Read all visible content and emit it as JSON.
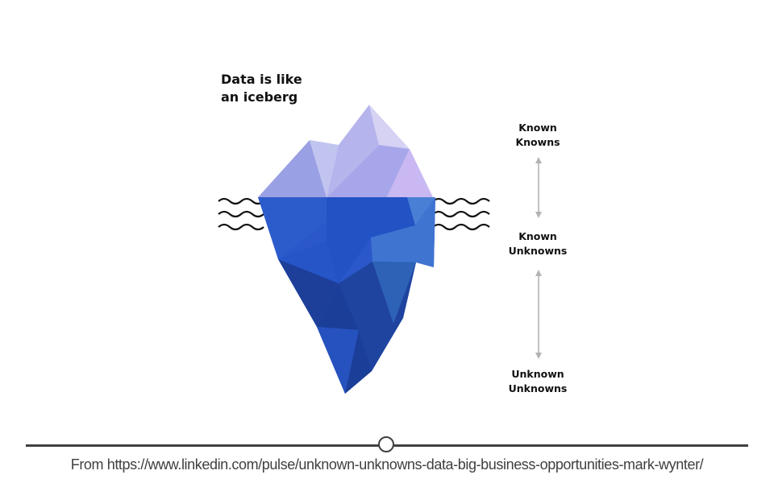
{
  "diagram": {
    "title_lines": [
      "Data is like",
      "an iceberg"
    ],
    "levels": [
      {
        "lines": [
          "Known",
          "Knowns"
        ]
      },
      {
        "lines": [
          "Known",
          "Unknowns"
        ]
      },
      {
        "lines": [
          "Unknown",
          "Unknowns"
        ]
      }
    ],
    "colors": {
      "above_water": [
        "#9aa0e4",
        "#c0c4ef",
        "#b6b4ec",
        "#d5d2f4",
        "#c9b8f2",
        "#a8a6ea"
      ],
      "below_water": [
        "#2a57c9",
        "#2352c4",
        "#3f74d1",
        "#1d3f9a",
        "#1b3f98",
        "#2e62b7",
        "#2a57c9"
      ],
      "waves": "#111111",
      "arrows": "#b3b3b3"
    }
  },
  "footer": {
    "source_text": "From https://www.linkedin.com/pulse/unknown-unknowns-data-big-business-opportunities-mark-wynter/"
  }
}
